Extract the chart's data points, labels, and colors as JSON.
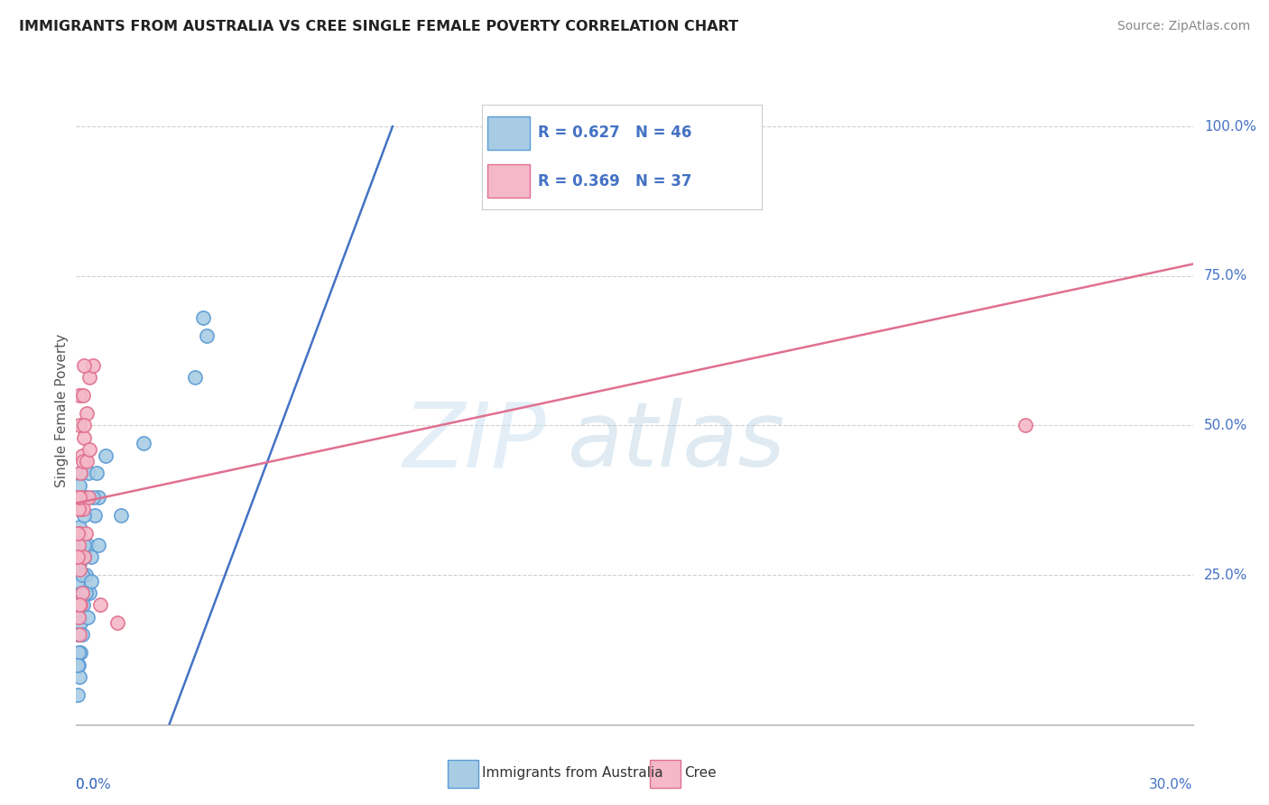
{
  "title": "IMMIGRANTS FROM AUSTRALIA VS CREE SINGLE FEMALE POVERTY CORRELATION CHART",
  "source": "Source: ZipAtlas.com",
  "ylabel": "Single Female Poverty",
  "legend_label1": "Immigrants from Australia",
  "legend_label2": "Cree",
  "R1": 0.627,
  "N1": 46,
  "R2": 0.369,
  "N2": 37,
  "xlim": [
    0.0,
    30.0
  ],
  "ylim": [
    0.0,
    105.0
  ],
  "ytick_values": [
    25.0,
    50.0,
    75.0,
    100.0
  ],
  "ytick_labels": [
    "25.0%",
    "50.0%",
    "75.0%",
    "100.0%"
  ],
  "blue_fill": "#a8cce4",
  "blue_edge": "#5b9bd5",
  "blue_line": "#4472c4",
  "pink_fill": "#f4b8c8",
  "pink_edge": "#e07090",
  "pink_line": "#e07090",
  "text_blue": "#4472c4",
  "blue_scatter": [
    [
      0.05,
      20.0
    ],
    [
      0.08,
      18.0
    ],
    [
      0.1,
      22.0
    ],
    [
      0.12,
      17.0
    ],
    [
      0.15,
      15.0
    ],
    [
      0.05,
      24.0
    ],
    [
      0.18,
      20.0
    ],
    [
      0.2,
      28.0
    ],
    [
      0.12,
      12.0
    ],
    [
      0.25,
      25.0
    ],
    [
      0.3,
      30.0
    ],
    [
      0.35,
      22.0
    ],
    [
      0.4,
      28.0
    ],
    [
      0.5,
      35.0
    ],
    [
      0.6,
      38.0
    ],
    [
      0.08,
      33.0
    ],
    [
      0.1,
      27.0
    ],
    [
      0.1,
      30.0
    ],
    [
      0.15,
      22.0
    ],
    [
      0.2,
      28.0
    ],
    [
      0.22,
      35.0
    ],
    [
      0.28,
      38.0
    ],
    [
      0.32,
      42.0
    ],
    [
      0.45,
      38.0
    ],
    [
      0.55,
      42.0
    ],
    [
      0.05,
      15.0
    ],
    [
      0.06,
      10.0
    ],
    [
      0.08,
      8.0
    ],
    [
      0.07,
      12.0
    ],
    [
      0.1,
      20.0
    ],
    [
      0.15,
      25.0
    ],
    [
      0.2,
      30.0
    ],
    [
      0.25,
      22.0
    ],
    [
      0.3,
      18.0
    ],
    [
      0.4,
      24.0
    ],
    [
      0.6,
      30.0
    ],
    [
      0.8,
      45.0
    ],
    [
      0.05,
      5.0
    ],
    [
      0.03,
      10.0
    ],
    [
      0.12,
      42.0
    ],
    [
      3.2,
      58.0
    ],
    [
      3.5,
      65.0
    ],
    [
      3.4,
      68.0
    ],
    [
      1.8,
      47.0
    ],
    [
      1.2,
      35.0
    ],
    [
      0.1,
      40.0
    ]
  ],
  "pink_scatter": [
    [
      0.05,
      38.0
    ],
    [
      0.08,
      50.0
    ],
    [
      0.1,
      55.0
    ],
    [
      0.12,
      42.0
    ],
    [
      0.15,
      45.0
    ],
    [
      0.18,
      44.0
    ],
    [
      0.22,
      48.0
    ],
    [
      0.28,
      52.0
    ],
    [
      0.35,
      58.0
    ],
    [
      0.45,
      60.0
    ],
    [
      0.08,
      32.0
    ],
    [
      0.1,
      28.0
    ],
    [
      0.12,
      36.0
    ],
    [
      0.15,
      38.0
    ],
    [
      0.18,
      36.0
    ],
    [
      0.22,
      50.0
    ],
    [
      0.28,
      44.0
    ],
    [
      0.35,
      46.0
    ],
    [
      0.06,
      30.0
    ],
    [
      0.08,
      26.0
    ],
    [
      0.12,
      20.0
    ],
    [
      0.15,
      22.0
    ],
    [
      0.2,
      28.0
    ],
    [
      0.25,
      32.0
    ],
    [
      0.32,
      38.0
    ],
    [
      0.06,
      18.0
    ],
    [
      0.1,
      20.0
    ],
    [
      0.08,
      15.0
    ],
    [
      0.65,
      20.0
    ],
    [
      1.1,
      17.0
    ],
    [
      25.5,
      50.0
    ],
    [
      0.04,
      32.0
    ],
    [
      0.04,
      28.0
    ],
    [
      0.06,
      36.0
    ],
    [
      0.08,
      38.0
    ],
    [
      0.18,
      55.0
    ],
    [
      0.22,
      60.0
    ]
  ],
  "blue_line_pts": [
    [
      2.5,
      0.0
    ],
    [
      8.5,
      100.0
    ]
  ],
  "pink_line_pts": [
    [
      0.0,
      37.0
    ],
    [
      30.0,
      77.0
    ]
  ],
  "watermark_zip": "ZIP",
  "watermark_atlas": "atlas",
  "background_color": "#ffffff",
  "grid_color": "#d0d0d0"
}
